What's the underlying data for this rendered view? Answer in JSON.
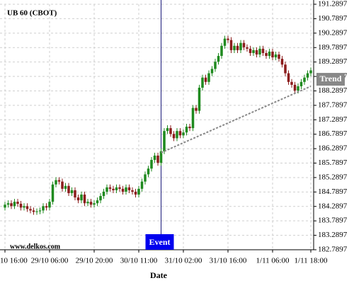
{
  "chart_data": {
    "type": "candlestick",
    "title": "UB 60 (CBOT)",
    "watermark": "www.delkos.com",
    "x_label": "Date",
    "categories": [
      "10 16:00",
      null,
      null,
      null,
      null,
      null,
      null,
      null,
      null,
      null,
      null,
      null,
      null,
      null,
      "29/10 06:00",
      null,
      null,
      null,
      null,
      null,
      null,
      null,
      null,
      null,
      null,
      null,
      null,
      null,
      "29/10 20:00",
      null,
      null,
      null,
      null,
      null,
      null,
      null,
      null,
      null,
      null,
      null,
      null,
      null,
      "30/10 11:00",
      null,
      null,
      null,
      null,
      null,
      null,
      null,
      null,
      null,
      null,
      null,
      null,
      null,
      "31/10 02:00",
      null,
      null,
      null,
      null,
      null,
      null,
      null,
      null,
      null,
      null,
      null,
      null,
      null,
      "31/10 16:00",
      null,
      null,
      null,
      null,
      null,
      null,
      null,
      null,
      null,
      null,
      null,
      null,
      null,
      "1/11 06:00",
      null,
      null,
      null,
      null,
      null,
      null,
      null,
      null,
      null,
      null,
      null,
      "1/11 18:00"
    ],
    "open": [
      184.25,
      184.35,
      184.4,
      184.3,
      184.45,
      184.38,
      184.25,
      184.3,
      184.2,
      184.15,
      184.1,
      184.12,
      184.15,
      184.3,
      184.25,
      184.45,
      185.05,
      185.2,
      185.15,
      184.9,
      185.0,
      184.75,
      184.85,
      184.6,
      184.5,
      184.7,
      184.4,
      184.45,
      184.35,
      184.4,
      184.5,
      184.65,
      184.8,
      184.95,
      184.9,
      184.85,
      184.95,
      184.9,
      184.8,
      184.95,
      184.85,
      184.8,
      184.7,
      184.9,
      185.15,
      185.4,
      185.6,
      185.9,
      186.05,
      185.8,
      186.2,
      186.9,
      187.0,
      186.8,
      186.65,
      186.9,
      186.75,
      186.85,
      187.05,
      187.0,
      187.7,
      187.6,
      188.4,
      188.75,
      188.6,
      188.9,
      189.05,
      189.3,
      189.5,
      189.85,
      190.1,
      190.05,
      189.7,
      189.85,
      189.7,
      189.95,
      189.8,
      189.75,
      189.6,
      189.7,
      189.55,
      189.75,
      189.6,
      189.5,
      189.65,
      189.45,
      189.55,
      189.4,
      189.2,
      188.9,
      188.6,
      188.5,
      188.3,
      188.45,
      188.6,
      188.75,
      188.9
    ],
    "high": [
      184.45,
      184.5,
      184.5,
      184.55,
      184.55,
      184.48,
      184.4,
      184.4,
      184.3,
      184.25,
      184.22,
      184.25,
      184.4,
      184.4,
      184.55,
      185.15,
      185.3,
      185.3,
      185.25,
      185.1,
      185.1,
      184.95,
      184.95,
      184.7,
      184.8,
      184.8,
      184.55,
      184.55,
      184.5,
      184.6,
      184.75,
      184.9,
      185.05,
      185.05,
      185.0,
      185.05,
      185.05,
      185.0,
      185.05,
      185.05,
      184.95,
      184.9,
      185.0,
      185.25,
      185.5,
      185.7,
      186.0,
      186.15,
      186.15,
      186.3,
      187.0,
      187.1,
      187.1,
      186.9,
      187.0,
      187.0,
      186.95,
      187.15,
      187.15,
      187.8,
      187.8,
      188.5,
      188.85,
      188.85,
      189.0,
      189.15,
      189.4,
      189.6,
      189.95,
      190.2,
      190.2,
      190.15,
      189.95,
      189.95,
      190.05,
      190.05,
      189.9,
      189.85,
      189.8,
      189.8,
      189.85,
      189.85,
      189.7,
      189.75,
      189.75,
      189.65,
      189.65,
      189.5,
      189.3,
      189.0,
      188.7,
      188.6,
      188.55,
      188.7,
      188.85,
      189.0,
      189.1
    ],
    "low": [
      184.15,
      184.25,
      184.2,
      184.2,
      184.28,
      184.15,
      184.15,
      184.1,
      184.05,
      184.0,
      184.0,
      184.02,
      184.05,
      184.15,
      184.15,
      184.35,
      184.95,
      185.05,
      184.8,
      184.8,
      184.65,
      184.65,
      184.5,
      184.4,
      184.4,
      184.3,
      184.3,
      184.25,
      184.25,
      184.3,
      184.4,
      184.55,
      184.7,
      184.8,
      184.75,
      184.75,
      184.8,
      184.7,
      184.7,
      184.75,
      184.7,
      184.6,
      184.6,
      184.8,
      185.05,
      185.3,
      185.5,
      185.8,
      185.7,
      185.7,
      186.1,
      186.8,
      186.7,
      186.55,
      186.55,
      186.65,
      186.65,
      186.75,
      186.9,
      186.9,
      187.5,
      187.5,
      188.3,
      188.5,
      188.5,
      188.8,
      188.95,
      189.2,
      189.4,
      189.75,
      189.95,
      189.6,
      189.6,
      189.6,
      189.6,
      189.7,
      189.65,
      189.5,
      189.5,
      189.45,
      189.45,
      189.5,
      189.4,
      189.4,
      189.35,
      189.35,
      189.3,
      189.1,
      188.8,
      188.5,
      188.4,
      188.2,
      188.2,
      188.35,
      188.5,
      188.65,
      188.8
    ],
    "close": [
      184.35,
      184.4,
      184.3,
      184.45,
      184.38,
      184.25,
      184.3,
      184.2,
      184.15,
      184.1,
      184.12,
      184.15,
      184.3,
      184.25,
      184.45,
      185.05,
      185.2,
      185.15,
      184.9,
      185.0,
      184.75,
      184.85,
      184.6,
      184.5,
      184.7,
      184.4,
      184.45,
      184.35,
      184.4,
      184.5,
      184.65,
      184.8,
      184.95,
      184.9,
      184.85,
      184.95,
      184.9,
      184.8,
      184.95,
      184.85,
      184.8,
      184.7,
      184.9,
      185.15,
      185.4,
      185.6,
      185.9,
      186.05,
      185.8,
      186.2,
      186.9,
      187.0,
      186.8,
      186.65,
      186.9,
      186.75,
      186.85,
      187.05,
      187.0,
      187.7,
      187.6,
      188.4,
      188.75,
      188.6,
      188.9,
      189.05,
      189.3,
      189.5,
      189.85,
      190.1,
      190.05,
      189.7,
      189.85,
      189.7,
      189.95,
      189.8,
      189.75,
      189.6,
      189.7,
      189.55,
      189.75,
      189.6,
      189.5,
      189.65,
      189.45,
      189.55,
      189.4,
      189.2,
      188.9,
      188.6,
      188.5,
      188.3,
      188.45,
      188.6,
      188.75,
      188.9,
      189.0
    ],
    "up_color": "#1f8a1f",
    "down_color": "#8b1c1c",
    "ylim": [
      182.7897,
      191.2897
    ],
    "yticks": [
      182.7897,
      183.2897,
      183.7897,
      184.2897,
      184.7897,
      185.2897,
      185.7897,
      186.2897,
      186.7897,
      187.2897,
      187.7897,
      188.2897,
      188.7897,
      189.2897,
      189.7897,
      190.2897,
      190.7897,
      191.2897
    ],
    "grid": true,
    "event": {
      "label": "Event",
      "category_index": 49,
      "color": "#0000ee"
    },
    "trend": {
      "label": "Trend",
      "start_value": 186.15,
      "end_value": 188.45,
      "color": "#888888"
    }
  }
}
